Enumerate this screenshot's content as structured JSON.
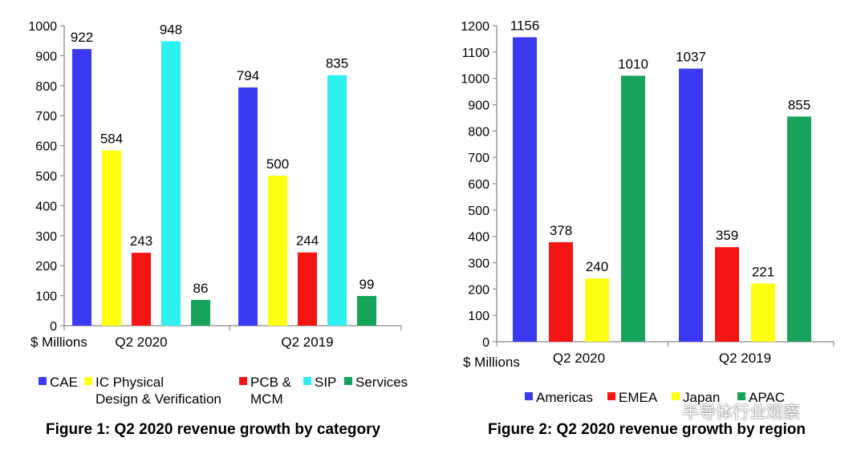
{
  "chart_data": [
    {
      "type": "bar",
      "unit_label": "$ Millions",
      "categories": [
        "Q2 2020",
        "Q2 2019"
      ],
      "ylim": [
        0,
        1000
      ],
      "yticks": [
        0,
        100,
        200,
        300,
        400,
        500,
        600,
        700,
        800,
        900,
        1000
      ],
      "grid": false,
      "legend_position": "bottom",
      "series": [
        {
          "name": "CAE",
          "color": "#3a3af0",
          "values": [
            922,
            794
          ]
        },
        {
          "name": "IC Physical Design & Verification",
          "legend_lines": [
            "IC Physical",
            "Design & Verification"
          ],
          "color": "#ffff10",
          "values": [
            584,
            500
          ]
        },
        {
          "name": "PCB & MCM",
          "legend_lines": [
            "PCB &",
            "MCM"
          ],
          "color": "#f51414",
          "values": [
            243,
            244
          ]
        },
        {
          "name": "SIP",
          "color": "#2ef0f0",
          "values": [
            948,
            835
          ]
        },
        {
          "name": "Services",
          "color": "#16a45a",
          "values": [
            86,
            99
          ]
        }
      ],
      "caption": "Figure 1: Q2 2020 revenue growth by category"
    },
    {
      "type": "bar",
      "unit_label": "$ Millions",
      "categories": [
        "Q2 2020",
        "Q2 2019"
      ],
      "ylim": [
        0,
        1200
      ],
      "yticks": [
        0,
        100,
        200,
        300,
        400,
        500,
        600,
        700,
        800,
        900,
        1000,
        1100,
        1200
      ],
      "grid": false,
      "legend_position": "bottom",
      "series": [
        {
          "name": "Americas",
          "color": "#3a3af0",
          "values": [
            1156,
            1037
          ]
        },
        {
          "name": "EMEA",
          "color": "#f51414",
          "values": [
            378,
            359
          ]
        },
        {
          "name": "Japan",
          "color": "#ffff10",
          "values": [
            240,
            221
          ]
        },
        {
          "name": "APAC",
          "color": "#16a45a",
          "values": [
            1010,
            855
          ]
        }
      ],
      "caption": "Figure 2: Q2 2020 revenue growth by region"
    }
  ],
  "watermark": {
    "text": "半导体行业观察",
    "icon": "wechat-icon"
  }
}
